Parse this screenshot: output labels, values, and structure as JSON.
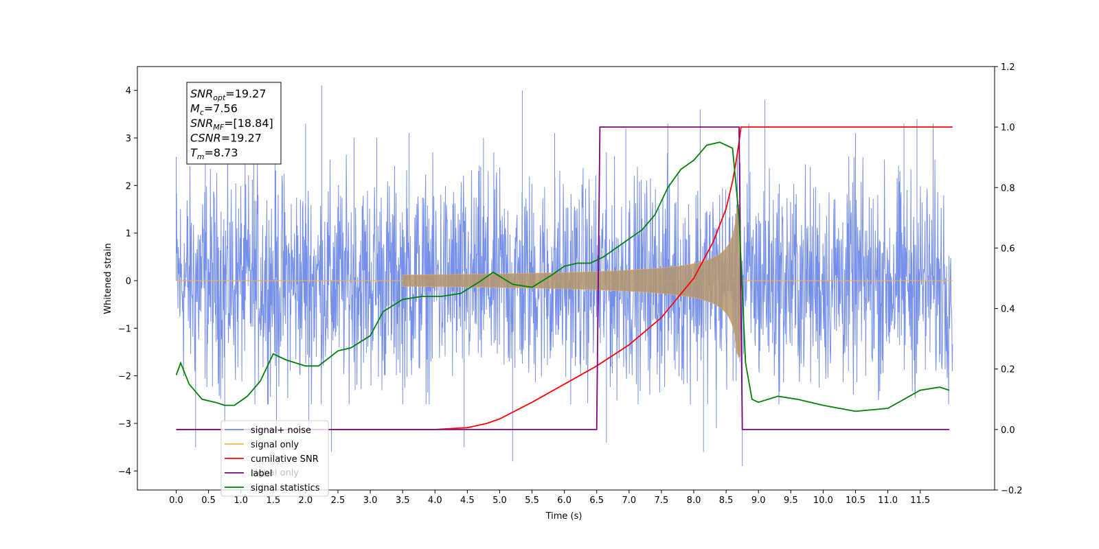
{
  "chart_data": {
    "type": "line",
    "xlabel": "Time (s)",
    "ylabel": "Whitened strain",
    "xlim": [
      -0.6,
      12.65
    ],
    "ylim": [
      -4.4,
      4.5
    ],
    "ylim_right": [
      -0.2,
      1.2
    ],
    "x_ticks": [
      "0.0",
      "0.5",
      "1.0",
      "1.5",
      "2.0",
      "2.5",
      "3.0",
      "3.5",
      "4.0",
      "4.5",
      "5.0",
      "5.5",
      "6.0",
      "6.5",
      "7.0",
      "7.5",
      "8.0",
      "8.5",
      "9.0",
      "9.5",
      "10.0",
      "10.5",
      "11.0",
      "11.5"
    ],
    "y_ticks_left": [
      "4",
      "3",
      "2",
      "1",
      "0",
      "−1",
      "−2",
      "−3",
      "−4"
    ],
    "y_ticks_right": [
      "1.2",
      "1.0",
      "0.8",
      "0.6",
      "0.4",
      "0.2",
      "0.0",
      "−0.2"
    ],
    "legend": {
      "placement": "lower-left",
      "entries": [
        {
          "label": "signal+ noise",
          "color": "#6f8ae8"
        },
        {
          "label": "signal only",
          "color": "#f5b04a"
        },
        {
          "label": "cumilative SNR",
          "color": "#ff0000"
        },
        {
          "label": "label",
          "color": "#800080"
        },
        {
          "label": "signal statistics",
          "color": "#008000"
        }
      ],
      "hidden_text": "signal only"
    },
    "annotation": {
      "lines": [
        {
          "base": "SNR",
          "sub": "opt",
          "rest": "=19.27"
        },
        {
          "base": "M",
          "sub": "c",
          "rest": "=7.56"
        },
        {
          "base": "SNR",
          "sub": "MF",
          "rest": "=[18.84]"
        },
        {
          "base": "CSNR",
          "sub": "",
          "rest": "=19.27"
        },
        {
          "base": "T",
          "sub": "m",
          "rest": "=8.73"
        }
      ]
    },
    "series": [
      {
        "name": "signal+ noise",
        "color": "#6f8ae8",
        "x_range": [
          0.0,
          12.0
        ],
        "noise_envelope": [
          -2.6,
          2.7
        ],
        "spikes": [
          [
            0.0,
            2.6
          ],
          [
            0.3,
            -3.5
          ],
          [
            0.45,
            2.9
          ],
          [
            0.75,
            -3.0
          ],
          [
            1.2,
            3.0
          ],
          [
            1.55,
            -3.2
          ],
          [
            2.0,
            3.3
          ],
          [
            2.05,
            -3.2
          ],
          [
            2.25,
            4.1
          ],
          [
            2.4,
            -3.6
          ],
          [
            2.75,
            3.0
          ],
          [
            3.1,
            3.0
          ],
          [
            3.6,
            3.1
          ],
          [
            4.45,
            -3.5
          ],
          [
            4.75,
            3.0
          ],
          [
            5.2,
            -3.8
          ],
          [
            5.35,
            4.0
          ],
          [
            5.85,
            3.1
          ],
          [
            6.65,
            -3.4
          ],
          [
            6.95,
            3.2
          ],
          [
            7.6,
            3.3
          ],
          [
            8.1,
            3.6
          ],
          [
            8.15,
            -3.6
          ],
          [
            8.35,
            -3.1
          ],
          [
            8.75,
            -3.9
          ],
          [
            8.85,
            3.3
          ],
          [
            9.1,
            3.8
          ],
          [
            10.5,
            3.1
          ],
          [
            11.25,
            3.3
          ],
          [
            11.45,
            3.4
          ],
          [
            11.7,
            3.3
          ]
        ]
      },
      {
        "name": "signal only",
        "color": "#f5b04a",
        "chirp_start": 3.5,
        "chirp_end": 8.72,
        "amplitude_at_end": 1.6
      },
      {
        "name": "cumilative SNR",
        "color": "#ff0000",
        "axis": "right",
        "x": [
          0.0,
          4.0,
          4.5,
          4.8,
          5.0,
          5.5,
          6.0,
          6.5,
          7.0,
          7.5,
          8.0,
          8.3,
          8.5,
          8.6,
          8.65,
          8.7,
          8.73,
          12.0
        ],
        "y": [
          0.0,
          0.0,
          0.006,
          0.02,
          0.035,
          0.09,
          0.15,
          0.21,
          0.28,
          0.37,
          0.5,
          0.62,
          0.73,
          0.82,
          0.88,
          0.95,
          1.0,
          1.0
        ]
      },
      {
        "name": "label",
        "color": "#800080",
        "axis": "right",
        "x": [
          0.0,
          6.5,
          6.55,
          8.7,
          8.75,
          11.95
        ],
        "y": [
          0.0,
          0.0,
          1.0,
          1.0,
          0.0,
          0.0
        ]
      },
      {
        "name": "signal statistics",
        "color": "#008000",
        "axis": "right",
        "x": [
          0.0,
          0.07,
          0.2,
          0.4,
          0.6,
          0.75,
          0.9,
          1.1,
          1.3,
          1.5,
          1.7,
          2.0,
          2.2,
          2.5,
          2.7,
          3.0,
          3.2,
          3.5,
          3.8,
          4.1,
          4.4,
          4.7,
          4.9,
          5.2,
          5.5,
          5.8,
          6.0,
          6.2,
          6.4,
          6.6,
          6.8,
          7.0,
          7.2,
          7.4,
          7.6,
          7.8,
          8.0,
          8.2,
          8.4,
          8.6,
          8.7,
          8.8,
          8.9,
          9.0,
          9.3,
          9.6,
          10.0,
          10.5,
          11.0,
          11.5,
          11.8,
          11.95
        ],
        "y": [
          0.18,
          0.22,
          0.15,
          0.1,
          0.09,
          0.08,
          0.08,
          0.11,
          0.16,
          0.25,
          0.23,
          0.21,
          0.21,
          0.26,
          0.27,
          0.31,
          0.39,
          0.43,
          0.44,
          0.44,
          0.45,
          0.49,
          0.52,
          0.48,
          0.47,
          0.51,
          0.54,
          0.55,
          0.55,
          0.57,
          0.6,
          0.63,
          0.66,
          0.71,
          0.8,
          0.86,
          0.89,
          0.94,
          0.95,
          0.93,
          0.7,
          0.22,
          0.1,
          0.09,
          0.11,
          0.1,
          0.08,
          0.06,
          0.07,
          0.13,
          0.14,
          0.13
        ]
      }
    ]
  }
}
